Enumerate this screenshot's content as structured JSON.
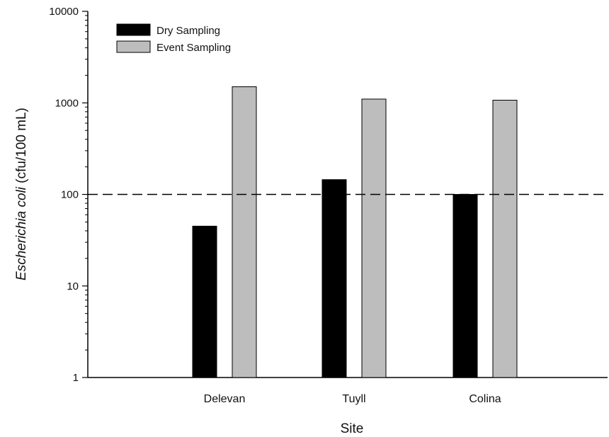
{
  "chart_data": {
    "type": "bar",
    "categories": [
      "Delevan",
      "Tuyll",
      "Colina"
    ],
    "series": [
      {
        "name": "Dry Sampling",
        "values": [
          45,
          145,
          100
        ],
        "color": "#000000"
      },
      {
        "name": "Event Sampling",
        "values": [
          1500,
          1100,
          1070
        ],
        "color": "#bdbdbd"
      }
    ],
    "reference_line": {
      "value": 100,
      "style": "dashed"
    },
    "xlabel": "Site",
    "ylabel_italic": "Escherichia coli",
    "ylabel_units": " (cfu/100 mL)",
    "yscale": "log",
    "ylim": [
      1,
      10000
    ],
    "yticks": [
      "1",
      "10",
      "100",
      "1000",
      "10000"
    ],
    "legend_position": "top-left",
    "grid": false
  }
}
